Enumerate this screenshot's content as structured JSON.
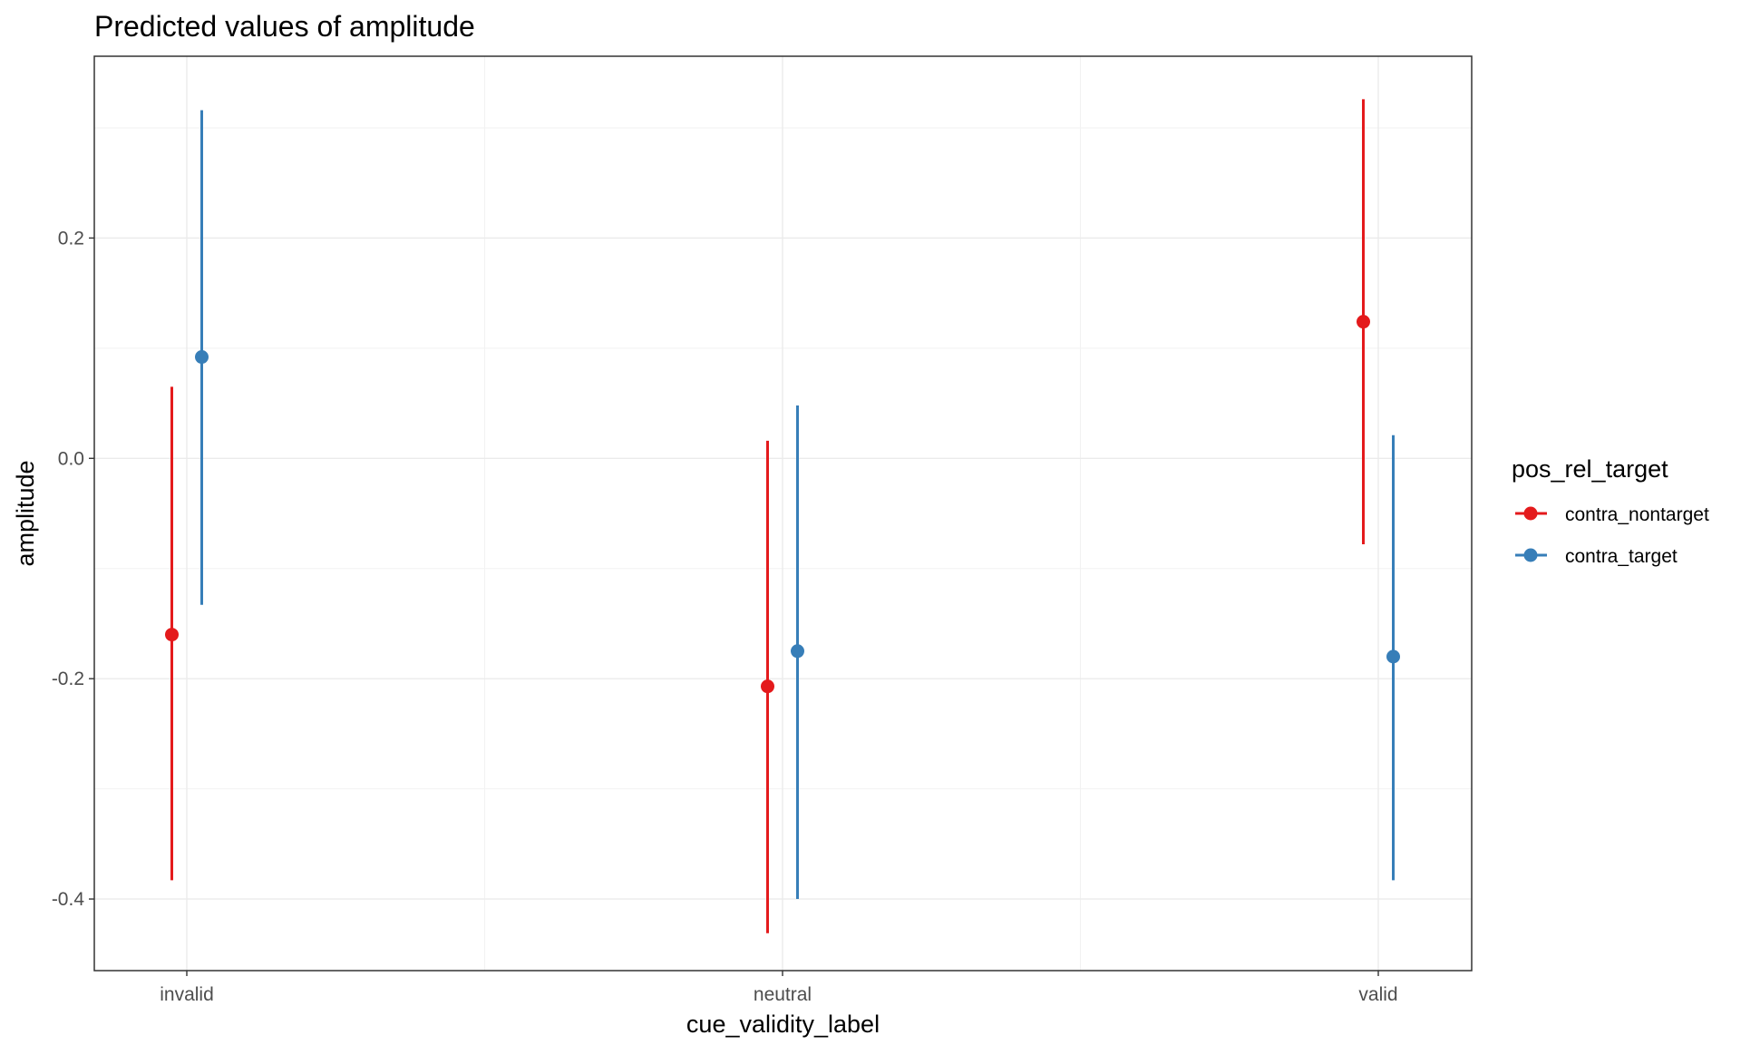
{
  "chart_data": {
    "type": "scatter",
    "title": "Predicted values of amplitude",
    "xlabel": "cue_validity_label",
    "ylabel": "amplitude",
    "categories": [
      "invalid",
      "neutral",
      "valid"
    ],
    "ylim": [
      -0.465,
      0.365
    ],
    "yticks": [
      -0.4,
      -0.2,
      0.0,
      0.2
    ],
    "ytick_labels": [
      "-0.4",
      "-0.2",
      "0.0",
      "0.2"
    ],
    "grid": true,
    "legend": {
      "title": "pos_rel_target",
      "position": "right"
    },
    "series": [
      {
        "name": "contra_nontarget",
        "color": "#e41a1c",
        "values": [
          -0.16,
          -0.207,
          0.124
        ],
        "ci_low": [
          -0.383,
          -0.431,
          -0.078
        ],
        "ci_high": [
          0.065,
          0.016,
          0.326
        ]
      },
      {
        "name": "contra_target",
        "color": "#377eb8",
        "values": [
          0.092,
          -0.175,
          -0.18
        ],
        "ci_low": [
          -0.133,
          -0.4,
          -0.383
        ],
        "ci_high": [
          0.316,
          0.048,
          0.021
        ]
      }
    ]
  }
}
